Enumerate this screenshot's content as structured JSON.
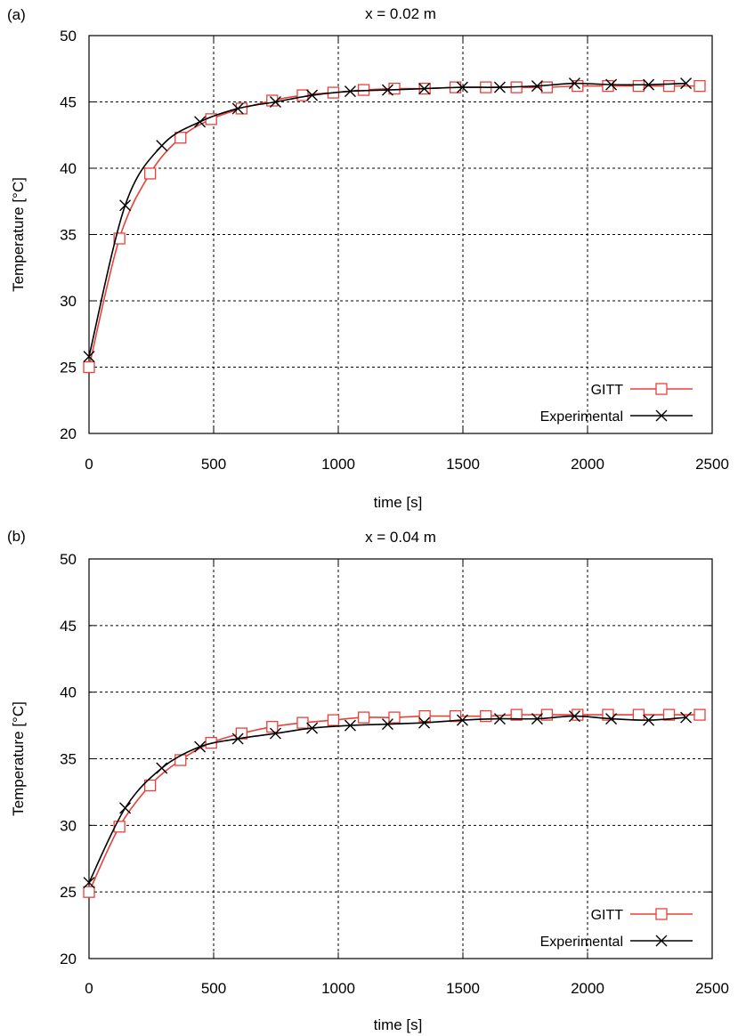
{
  "chart_data": [
    {
      "panel_label": "(a)",
      "type": "line",
      "title": "x = 0.02 m",
      "xlabel": "time [s]",
      "ylabel": "Temperature [°C]",
      "xlim": [
        0,
        2500
      ],
      "ylim": [
        20,
        50
      ],
      "xticks": [
        0,
        500,
        1000,
        1500,
        2000,
        2500
      ],
      "yticks": [
        20,
        25,
        30,
        35,
        40,
        45,
        50
      ],
      "grid": true,
      "legend_position": "bottom-right",
      "series": [
        {
          "name": "GITT",
          "color": "#e8413a",
          "marker": "square",
          "x": [
            0,
            122,
            245,
            367,
            490,
            612,
            735,
            857,
            980,
            1102,
            1225,
            1347,
            1470,
            1592,
            1715,
            1837,
            1960,
            2082,
            2205,
            2327,
            2450
          ],
          "y": [
            25.0,
            34.7,
            39.6,
            42.3,
            43.7,
            44.5,
            45.1,
            45.5,
            45.7,
            45.9,
            46.0,
            46.0,
            46.1,
            46.1,
            46.1,
            46.1,
            46.2,
            46.2,
            46.2,
            46.2,
            46.2
          ]
        },
        {
          "name": "Experimental",
          "color": "#000000",
          "marker": "x",
          "x": [
            0,
            145,
            292,
            445,
            597,
            748,
            895,
            1048,
            1198,
            1345,
            1498,
            1648,
            1798,
            1948,
            2095,
            2245,
            2395
          ],
          "y": [
            25.8,
            37.2,
            41.7,
            43.5,
            44.5,
            45.0,
            45.5,
            45.8,
            45.9,
            46.0,
            46.1,
            46.1,
            46.2,
            46.4,
            46.3,
            46.3,
            46.4
          ]
        }
      ]
    },
    {
      "panel_label": "(b)",
      "type": "line",
      "title": "x = 0.04 m",
      "xlabel": "time [s]",
      "ylabel": "Temperature [°C]",
      "xlim": [
        0,
        2500
      ],
      "ylim": [
        20,
        50
      ],
      "xticks": [
        0,
        500,
        1000,
        1500,
        2000,
        2500
      ],
      "yticks": [
        20,
        25,
        30,
        35,
        40,
        45,
        50
      ],
      "grid": true,
      "legend_position": "bottom-right",
      "series": [
        {
          "name": "GITT",
          "color": "#e8413a",
          "marker": "square",
          "x": [
            0,
            122,
            245,
            367,
            490,
            612,
            735,
            857,
            980,
            1102,
            1225,
            1347,
            1470,
            1592,
            1715,
            1837,
            1960,
            2082,
            2205,
            2327,
            2450
          ],
          "y": [
            25.0,
            29.9,
            33.0,
            34.9,
            36.2,
            36.9,
            37.4,
            37.7,
            37.9,
            38.1,
            38.1,
            38.2,
            38.2,
            38.2,
            38.3,
            38.3,
            38.3,
            38.3,
            38.3,
            38.3,
            38.3
          ]
        },
        {
          "name": "Experimental",
          "color": "#000000",
          "marker": "x",
          "x": [
            0,
            145,
            292,
            445,
            597,
            748,
            895,
            1048,
            1198,
            1345,
            1498,
            1648,
            1798,
            1948,
            2095,
            2245,
            2395
          ],
          "y": [
            25.7,
            31.3,
            34.3,
            35.9,
            36.5,
            36.9,
            37.3,
            37.5,
            37.6,
            37.7,
            37.9,
            38.0,
            38.0,
            38.2,
            38.0,
            37.9,
            38.1
          ]
        }
      ]
    }
  ]
}
